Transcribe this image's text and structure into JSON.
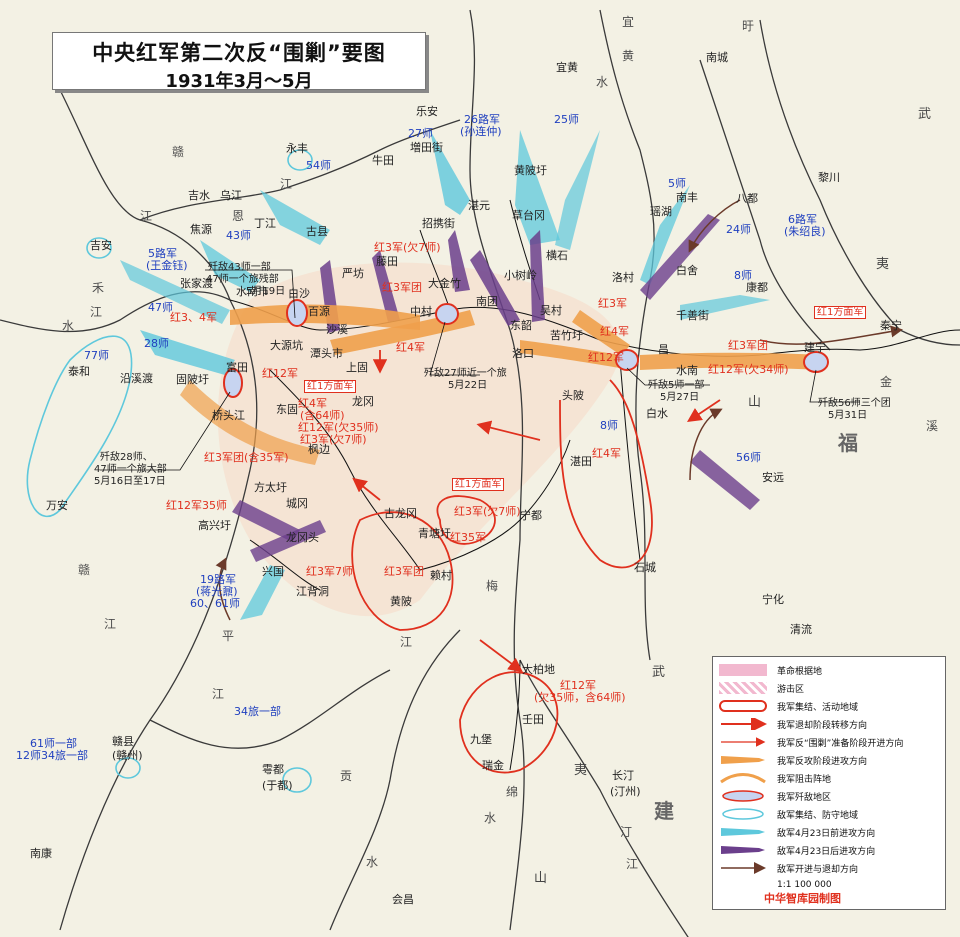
{
  "title": {
    "line1": "中央红军第二次反“围剿”要图",
    "line2": "1931年3月～5月"
  },
  "places": [
    {
      "id": "yongfeng",
      "text": "永丰"
    },
    {
      "id": "jishui",
      "text": "吉水"
    },
    {
      "id": "wujiang",
      "text": "乌江"
    },
    {
      "id": "jiaoyuan",
      "text": "焦源"
    },
    {
      "id": "dingjiang",
      "text": "丁江"
    },
    {
      "id": "gu",
      "text": "古县"
    },
    {
      "id": "niutian",
      "text": "牛田"
    },
    {
      "id": "lean",
      "text": "乐安"
    },
    {
      "id": "zengtianjie",
      "text": "増田街"
    },
    {
      "id": "zhanyuan",
      "text": "湛元"
    },
    {
      "id": "huangbeixu",
      "text": "黄陂圩"
    },
    {
      "id": "caotaigang",
      "text": "草台冈"
    },
    {
      "id": "yihuang",
      "text": "宜黄"
    },
    {
      "id": "nancheng",
      "text": "南城"
    },
    {
      "id": "lichuan",
      "text": "黎川"
    },
    {
      "id": "nanfeng",
      "text": "南丰"
    },
    {
      "id": "bazhen",
      "text": "八都"
    },
    {
      "id": "yaohu",
      "text": "瑶湖"
    },
    {
      "id": "kangdu",
      "text": "康都"
    },
    {
      "id": "baishe",
      "text": "白舍"
    },
    {
      "id": "luoxi",
      "text": "洛村"
    },
    {
      "id": "ganzhujie",
      "text": "千善街"
    },
    {
      "id": "jianning",
      "text": "建宁"
    },
    {
      "id": "taining",
      "text": "秦宁"
    },
    {
      "id": "ji_an",
      "text": "吉安"
    },
    {
      "id": "zhangjiadu",
      "text": "张家渡"
    },
    {
      "id": "shuinanshi",
      "text": "水南市"
    },
    {
      "id": "baisha",
      "text": "白沙"
    },
    {
      "id": "tengtian",
      "text": "藤田"
    },
    {
      "id": "yankeng",
      "text": "严坊"
    },
    {
      "id": "baiyun",
      "text": "百源"
    },
    {
      "id": "shaxi",
      "text": "沙溪"
    },
    {
      "id": "zhaoxiejie",
      "text": "招携街"
    },
    {
      "id": "dajinzhu",
      "text": "大金竹"
    },
    {
      "id": "zhongcun",
      "text": "中村"
    },
    {
      "id": "nantuan",
      "text": "南团"
    },
    {
      "id": "xiaoshuling",
      "text": "小树岭"
    },
    {
      "id": "hengshi",
      "text": "横石"
    },
    {
      "id": "dongshao",
      "text": "东韶"
    },
    {
      "id": "wucun",
      "text": "吴村"
    },
    {
      "id": "luokou",
      "text": "洛口"
    },
    {
      "id": "kuzhuxu",
      "text": "苦竹圩"
    },
    {
      "id": "guangchang",
      "text": "昌"
    },
    {
      "id": "shuinan",
      "text": "水南"
    },
    {
      "id": "baishui",
      "text": "白水"
    },
    {
      "id": "toupi",
      "text": "头陂"
    },
    {
      "id": "zhantian",
      "text": "湛田"
    },
    {
      "id": "taihe",
      "text": "泰和"
    },
    {
      "id": "yanxidu",
      "text": "沿溪渡"
    },
    {
      "id": "futian",
      "text": "富田"
    },
    {
      "id": "guanbaixu",
      "text": "固陂圩"
    },
    {
      "id": "qiaotoujiang",
      "text": "桥头江"
    },
    {
      "id": "daiyuankeng",
      "text": "大源坑"
    },
    {
      "id": "tanxishi",
      "text": "潭头市"
    },
    {
      "id": "shangu",
      "text": "上固"
    },
    {
      "id": "donggu",
      "text": "东固"
    },
    {
      "id": "longgang",
      "text": "龙冈"
    },
    {
      "id": "fengbian",
      "text": "枫边"
    },
    {
      "id": "wan_an",
      "text": "万安"
    },
    {
      "id": "fangtaixu",
      "text": "方太圩"
    },
    {
      "id": "chengnang",
      "text": "城冈"
    },
    {
      "id": "gaoxingxu",
      "text": "高兴圩"
    },
    {
      "id": "longgangtou",
      "text": "龙冈头"
    },
    {
      "id": "xingguo",
      "text": "兴国"
    },
    {
      "id": "jiangbeidong",
      "text": "江背洞"
    },
    {
      "id": "gulonggang",
      "text": "古龙冈"
    },
    {
      "id": "qingtangxu",
      "text": "青塘圩"
    },
    {
      "id": "laicun",
      "text": "赖村"
    },
    {
      "id": "huangpi",
      "text": "黄陂"
    },
    {
      "id": "ningdu",
      "text": "宁都"
    },
    {
      "id": "shicheng",
      "text": "石城"
    },
    {
      "id": "ninghua",
      "text": "宁化"
    },
    {
      "id": "qingliu",
      "text": "清流"
    },
    {
      "id": "anyuan",
      "text": "安远"
    },
    {
      "id": "dabaidi",
      "text": "大柏地"
    },
    {
      "id": "rentian",
      "text": "壬田"
    },
    {
      "id": "jiubao",
      "text": "九堡"
    },
    {
      "id": "ruijin",
      "text": "瑞金"
    },
    {
      "id": "changting",
      "text": "长汀"
    },
    {
      "id": "changting2",
      "text": "(汀州)"
    },
    {
      "id": "yudu",
      "text": "雩都"
    },
    {
      "id": "yudu2",
      "text": "(于都)"
    },
    {
      "id": "ganxian",
      "text": "赣县"
    },
    {
      "id": "ganxian2",
      "text": "(赣州)"
    },
    {
      "id": "nankang",
      "text": "南康"
    },
    {
      "id": "huichang",
      "text": "会昌"
    }
  ],
  "enemy_labels": [
    {
      "id": "e26",
      "text": "26路军"
    },
    {
      "id": "e26b",
      "text": "(孙连仲)"
    },
    {
      "id": "e27",
      "text": "27师"
    },
    {
      "id": "e25",
      "text": "25师"
    },
    {
      "id": "e54",
      "text": "54师"
    },
    {
      "id": "e43",
      "text": "43师"
    },
    {
      "id": "e5l",
      "text": "5路军"
    },
    {
      "id": "e5lb",
      "text": "(王金钰)"
    },
    {
      "id": "e47",
      "text": "47师"
    },
    {
      "id": "e28",
      "text": "28师"
    },
    {
      "id": "e77",
      "text": "77师"
    },
    {
      "id": "e5s",
      "text": "5师"
    },
    {
      "id": "e24",
      "text": "24师"
    },
    {
      "id": "e6l",
      "text": "6路军"
    },
    {
      "id": "e6lb",
      "text": "(朱绍良)"
    },
    {
      "id": "e8s",
      "text": "8师"
    },
    {
      "id": "e8s2",
      "text": "8师"
    },
    {
      "id": "e56",
      "text": "56师"
    },
    {
      "id": "e19l",
      "text": "19路军"
    },
    {
      "id": "e19lb",
      "text": "(蒋光鼐)"
    },
    {
      "id": "e1960",
      "text": "60、61师"
    },
    {
      "id": "e34",
      "text": "34旅一部"
    },
    {
      "id": "e61",
      "text": "61师一部"
    },
    {
      "id": "e12",
      "text": "12师34旅一部"
    }
  ],
  "red_labels": [
    {
      "id": "r3j7",
      "text": "红3军(欠7师)"
    },
    {
      "id": "r34",
      "text": "红3、4军"
    },
    {
      "id": "r3t",
      "text": "红3军团"
    },
    {
      "id": "r4j",
      "text": "红4军"
    },
    {
      "id": "r3j",
      "text": "红3军"
    },
    {
      "id": "r4j2",
      "text": "红4军"
    },
    {
      "id": "r12a",
      "text": "红12军"
    },
    {
      "id": "r3t2",
      "text": "红3军团"
    },
    {
      "id": "r12b",
      "text": "红12军(欠34师)"
    },
    {
      "id": "r12c",
      "text": "红12军"
    },
    {
      "id": "r4j3",
      "text": "红4军"
    },
    {
      "id": "r4j4",
      "text": "(含64师)"
    },
    {
      "id": "r12d",
      "text": "红12军(欠35师)"
    },
    {
      "id": "r3j8",
      "text": "红3军(欠7师)"
    },
    {
      "id": "r3t35",
      "text": "红3军团(含35军)"
    },
    {
      "id": "r4jr",
      "text": "红4军"
    },
    {
      "id": "r1235",
      "text": "红12军35师"
    },
    {
      "id": "r3j7s",
      "text": "红3军7师"
    },
    {
      "id": "r3t3",
      "text": "红3军团"
    },
    {
      "id": "r3j7b",
      "text": "红3军(欠7师)"
    },
    {
      "id": "r35",
      "text": "红35军"
    },
    {
      "id": "r12e",
      "text": "红12军"
    },
    {
      "id": "r12e2",
      "text": "(欠35师，含64师)"
    }
  ],
  "boxed_labels": [
    {
      "id": "b1",
      "text": "红1方面军"
    },
    {
      "id": "b2",
      "text": "红1方面军"
    },
    {
      "id": "b3",
      "text": "红1方面军"
    }
  ],
  "notes": [
    {
      "id": "n1",
      "text": "歼敌43师一部"
    },
    {
      "id": "n1b",
      "text": "47师一个旅残部"
    },
    {
      "id": "n1c",
      "text": "5月19日"
    },
    {
      "id": "n2",
      "text": "歼敌27师近一个旅"
    },
    {
      "id": "n2b",
      "text": "5月22日"
    },
    {
      "id": "n3",
      "text": "歼敌5师一部"
    },
    {
      "id": "n3b",
      "text": "5月27日"
    },
    {
      "id": "n4",
      "text": "歼敌56师三个团"
    },
    {
      "id": "n4b",
      "text": "5月31日"
    },
    {
      "id": "n5",
      "text": "歼敌28师、"
    },
    {
      "id": "n5b",
      "text": "47师一个旅大部"
    },
    {
      "id": "n5c",
      "text": "5月16日至17日"
    }
  ],
  "rivers": [
    {
      "id": "rv1",
      "text": "宜"
    },
    {
      "id": "rv2",
      "text": "黄"
    },
    {
      "id": "rv3",
      "text": "水"
    },
    {
      "id": "rv4",
      "text": "旴"
    },
    {
      "id": "rv5",
      "text": "赣"
    },
    {
      "id": "rv6",
      "text": "江"
    },
    {
      "id": "rv7",
      "text": "恩"
    },
    {
      "id": "rv8",
      "text": "江"
    },
    {
      "id": "rv9",
      "text": "禾"
    },
    {
      "id": "rv10",
      "text": "水"
    },
    {
      "id": "rv11",
      "text": "赣"
    },
    {
      "id": "rv12",
      "text": "江"
    },
    {
      "id": "rv13",
      "text": "平"
    },
    {
      "id": "rv14",
      "text": "江"
    },
    {
      "id": "rv15",
      "text": "贡"
    },
    {
      "id": "rv16",
      "text": "水"
    },
    {
      "id": "rv17",
      "text": "梅"
    },
    {
      "id": "rv18",
      "text": "江"
    },
    {
      "id": "rv19",
      "text": "绵"
    },
    {
      "id": "rv20",
      "text": "水"
    },
    {
      "id": "rv21",
      "text": "汀"
    },
    {
      "id": "rv22",
      "text": "江"
    },
    {
      "id": "rv23",
      "text": "溪"
    },
    {
      "id": "rv24",
      "text": "金"
    },
    {
      "id": "rv25",
      "text": "江"
    }
  ],
  "regions": [
    {
      "id": "rg1",
      "text": "武"
    },
    {
      "id": "rg2",
      "text": "夷"
    },
    {
      "id": "rg3",
      "text": "山"
    },
    {
      "id": "rg4",
      "text": "福"
    },
    {
      "id": "rg5",
      "text": "武"
    },
    {
      "id": "rg6",
      "text": "夷"
    },
    {
      "id": "rg7",
      "text": "山"
    },
    {
      "id": "rg8",
      "text": "建"
    }
  ],
  "legend": {
    "items": [
      "革命根据地",
      "游击区",
      "我军集结、活动地域",
      "我军退却阶段转移方向",
      "我军反“围剿”准备阶段开进方向",
      "我军反攻阶段进攻方向",
      "我军阻击阵地",
      "我军歼敌地区",
      "敌军集结、防守地域",
      "敌军4月23日前进攻方向",
      "敌军4月23日后进攻方向",
      "敌军开进与退却方向"
    ],
    "scale": "1:1 100 000"
  },
  "credit": "中华智库园制图",
  "colors": {
    "red": "#e0301e",
    "enemy_blue": "#1f3fbf",
    "cyan": "#5ec8dc",
    "purple": "#6b3f8c",
    "orange": "#f0a04b",
    "pink": "#f2b8cf",
    "brown": "#6b3a2a"
  }
}
